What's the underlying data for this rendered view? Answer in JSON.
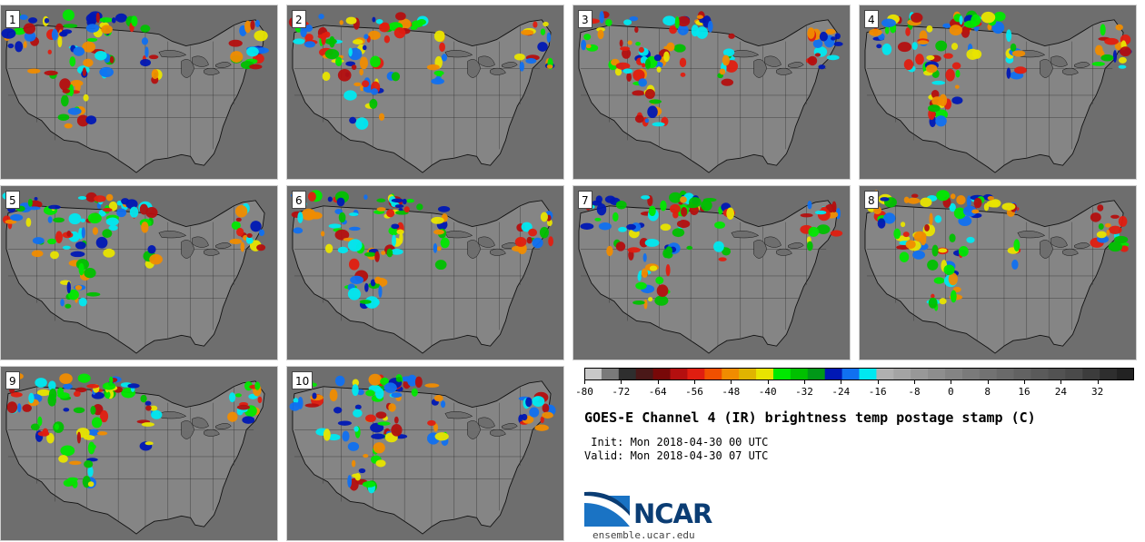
{
  "panels": [
    {
      "label": "1"
    },
    {
      "label": "2"
    },
    {
      "label": "3"
    },
    {
      "label": "4"
    },
    {
      "label": "5"
    },
    {
      "label": "6"
    },
    {
      "label": "7"
    },
    {
      "label": "8"
    },
    {
      "label": "9"
    },
    {
      "label": "10"
    }
  ],
  "colorbar": {
    "ticks": [
      "-80",
      "-72",
      "-64",
      "-56",
      "-48",
      "-40",
      "-32",
      "-24",
      "-16",
      "-8",
      "0",
      "8",
      "16",
      "24",
      "32"
    ],
    "min": -80,
    "max": 40,
    "colors": [
      "#c8c8c8",
      "#7a7a7a",
      "#2e2e2e",
      "#4a1818",
      "#780808",
      "#b40f0f",
      "#e01e10",
      "#f05000",
      "#f08c00",
      "#e0b400",
      "#e8e400",
      "#00e800",
      "#00c000",
      "#009818",
      "#0018b4",
      "#1070f0",
      "#00e8f0",
      "#b0b0b0",
      "#a4a4a4",
      "#989898",
      "#8e8e8e",
      "#848484",
      "#7a7a7a",
      "#727272",
      "#6a6a6a",
      "#626262",
      "#5a5a5a",
      "#525252",
      "#4a4a4a",
      "#3c3c3c",
      "#2e2e2e",
      "#222222"
    ]
  },
  "title": "GOES-E Channel 4 (IR) brightness temp postage stamp (C)",
  "init_text": " Init: Mon 2018-04-30 00 UTC",
  "valid_text": "Valid: Mon 2018-04-30 07 UTC",
  "logo": {
    "text": "NCAR",
    "url": "ensemble.ucar.edu"
  }
}
